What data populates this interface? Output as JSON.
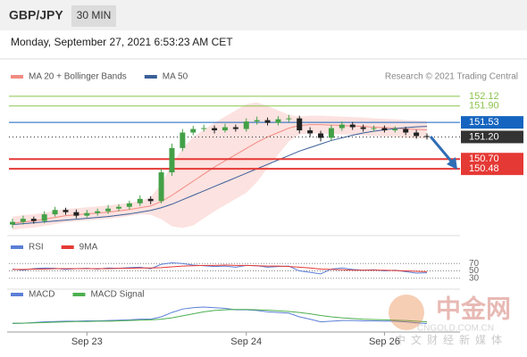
{
  "header": {
    "symbol": "GBP/JPY",
    "timeframe": "30 MIN",
    "datetime": "Monday, September 27, 2021 6:53:23 AM CET"
  },
  "watermark": {
    "brand": "中金网",
    "site": "CNGOLD.COM.CN",
    "slogan": "中文财经新媒体"
  },
  "chart_data": [
    {
      "type": "candlestick",
      "credit": "Research © 2021 Trading Central",
      "categories": [
        null,
        null,
        null,
        null,
        null,
        null,
        null,
        "Sep 23",
        null,
        null,
        null,
        null,
        null,
        null,
        null,
        null,
        null,
        null,
        null,
        null,
        null,
        null,
        "Sep 24",
        null,
        null,
        null,
        null,
        null,
        null,
        null,
        null,
        null,
        null,
        null,
        null,
        "Sep 26",
        null,
        null,
        null,
        null
      ],
      "open": [
        149.22,
        149.28,
        149.35,
        149.3,
        149.45,
        149.55,
        149.5,
        149.42,
        149.48,
        149.52,
        149.58,
        149.62,
        149.7,
        149.8,
        149.75,
        150.4,
        150.95,
        151.3,
        151.38,
        151.4,
        151.35,
        151.42,
        151.38,
        151.55,
        151.58,
        151.52,
        151.6,
        151.62,
        151.35,
        151.28,
        151.18,
        151.4,
        151.48,
        151.42,
        151.38,
        151.4,
        151.35,
        151.38,
        151.3,
        151.22
      ],
      "high": [
        149.35,
        149.42,
        149.4,
        149.52,
        149.62,
        149.6,
        149.56,
        149.55,
        149.58,
        149.66,
        149.68,
        149.76,
        149.88,
        149.86,
        150.48,
        151.05,
        151.38,
        151.45,
        151.48,
        151.46,
        151.5,
        151.48,
        151.62,
        151.66,
        151.64,
        151.67,
        151.7,
        151.68,
        151.42,
        151.34,
        151.47,
        151.55,
        151.54,
        151.48,
        151.46,
        151.46,
        151.44,
        151.43,
        151.36,
        151.28
      ],
      "low": [
        149.14,
        149.22,
        149.24,
        149.25,
        149.4,
        149.44,
        149.36,
        149.38,
        149.42,
        149.46,
        149.52,
        149.56,
        149.64,
        149.68,
        149.7,
        150.32,
        150.88,
        151.24,
        151.32,
        151.28,
        151.3,
        151.32,
        151.32,
        151.48,
        151.46,
        151.46,
        151.54,
        151.28,
        151.2,
        151.1,
        151.12,
        151.34,
        151.36,
        151.32,
        151.32,
        151.3,
        151.3,
        151.24,
        151.16,
        151.14
      ],
      "close": [
        149.28,
        149.35,
        149.3,
        149.45,
        149.55,
        149.5,
        149.42,
        149.48,
        149.52,
        149.58,
        149.62,
        149.7,
        149.8,
        149.75,
        150.4,
        150.95,
        151.3,
        151.38,
        151.4,
        151.35,
        151.42,
        151.38,
        151.55,
        151.58,
        151.52,
        151.6,
        151.62,
        151.35,
        151.28,
        151.18,
        151.4,
        151.48,
        151.42,
        151.38,
        151.4,
        151.35,
        151.38,
        151.3,
        151.22,
        151.2
      ],
      "up_color": "#43a047",
      "down_color": "#222222",
      "series": [
        {
          "name": "MA 20 + Bollinger Bands",
          "color": "#f28b82",
          "values": [
            149.25,
            149.28,
            149.3,
            149.34,
            149.38,
            149.42,
            149.44,
            149.46,
            149.48,
            149.5,
            149.53,
            149.56,
            149.6,
            149.64,
            149.74,
            149.88,
            150.04,
            150.2,
            150.36,
            150.52,
            150.66,
            150.8,
            150.94,
            151.08,
            151.2,
            151.3,
            151.4,
            151.46,
            151.48,
            151.48,
            151.47,
            151.46,
            151.45,
            151.44,
            151.42,
            151.41,
            151.4,
            151.38,
            151.37,
            151.36
          ],
          "upper": [
            149.4,
            149.43,
            149.45,
            149.49,
            149.53,
            149.57,
            149.59,
            149.61,
            149.63,
            149.65,
            149.68,
            149.71,
            149.75,
            149.84,
            150.14,
            150.58,
            150.94,
            151.2,
            151.36,
            151.52,
            151.66,
            151.8,
            151.94,
            151.98,
            151.9,
            151.8,
            151.7,
            151.66,
            151.68,
            151.68,
            151.67,
            151.66,
            151.65,
            151.64,
            151.62,
            151.61,
            151.6,
            151.58,
            151.57,
            151.56
          ],
          "lower": [
            149.1,
            149.13,
            149.15,
            149.19,
            149.23,
            149.27,
            149.29,
            149.31,
            149.33,
            149.35,
            149.38,
            149.41,
            149.45,
            149.44,
            149.34,
            149.18,
            149.14,
            149.2,
            149.36,
            149.52,
            149.66,
            149.8,
            149.94,
            150.18,
            150.5,
            150.8,
            151.1,
            151.26,
            151.28,
            151.28,
            151.27,
            151.26,
            151.25,
            151.24,
            151.22,
            151.21,
            151.2,
            151.18,
            151.17,
            151.16
          ]
        },
        {
          "name": "MA 50",
          "color": "#3a5f9a",
          "values": [
            149.22,
            149.24,
            149.26,
            149.28,
            149.3,
            149.32,
            149.34,
            149.36,
            149.38,
            149.4,
            149.43,
            149.46,
            149.5,
            149.54,
            149.6,
            149.68,
            149.78,
            149.88,
            149.98,
            150.08,
            150.18,
            150.28,
            150.38,
            150.48,
            150.58,
            150.68,
            150.78,
            150.88,
            150.96,
            151.04,
            151.12,
            151.18,
            151.24,
            151.29,
            151.33,
            151.36,
            151.39,
            151.41,
            151.43,
            151.44
          ]
        }
      ],
      "levels": [
        {
          "value": 152.12,
          "label": "152.12",
          "color": "#8bc34a"
        },
        {
          "value": 151.9,
          "label": "151.90",
          "color": "#8bc34a"
        },
        {
          "value": 151.53,
          "label": "151.53",
          "color": "#1565c0"
        },
        {
          "value": 151.2,
          "label": "151.20",
          "color": "#333333"
        },
        {
          "value": 150.7,
          "label": "150.70",
          "color": "#e53935"
        },
        {
          "value": 150.48,
          "label": "150.48",
          "color": "#e53935"
        }
      ],
      "ylim": [
        149.05,
        152.4
      ]
    },
    {
      "type": "line",
      "series": [
        {
          "name": "RSI",
          "color": "#5b7fd6",
          "values": [
            55,
            52,
            56,
            58,
            57,
            54,
            56,
            57,
            55,
            58,
            57,
            59,
            60,
            56,
            68,
            72,
            70,
            66,
            64,
            62,
            63,
            60,
            65,
            64,
            60,
            62,
            63,
            50,
            46,
            42,
            55,
            58,
            54,
            52,
            53,
            50,
            52,
            48,
            44,
            45
          ]
        },
        {
          "name": "9MA",
          "color": "#e53935",
          "values": [
            54,
            54,
            55,
            55,
            56,
            56,
            56,
            56,
            56,
            56,
            57,
            57,
            58,
            58,
            59,
            61,
            63,
            64,
            65,
            65,
            66,
            65,
            65,
            64,
            63,
            63,
            62,
            60,
            58,
            55,
            54,
            53,
            52,
            52,
            52,
            52,
            51,
            50,
            49,
            48
          ]
        }
      ],
      "ylim": [
        10,
        95
      ],
      "yticks": [
        70,
        50,
        30
      ]
    },
    {
      "type": "line",
      "series": [
        {
          "name": "MACD",
          "color": "#5b7fd6",
          "values": [
            -0.05,
            -0.04,
            -0.02,
            0,
            0.01,
            0.02,
            0.02,
            0.03,
            0.03,
            0.04,
            0.05,
            0.06,
            0.08,
            0.08,
            0.15,
            0.28,
            0.38,
            0.42,
            0.44,
            0.42,
            0.4,
            0.36,
            0.36,
            0.34,
            0.3,
            0.28,
            0.26,
            0.15,
            0.08,
            0.0,
            0.02,
            0.04,
            0.04,
            0.03,
            0.03,
            0.02,
            0.02,
            0.0,
            -0.03,
            -0.05
          ]
        },
        {
          "name": "MACD Signal",
          "color": "#4caf50",
          "values": [
            -0.04,
            -0.04,
            -0.03,
            -0.02,
            -0.01,
            0,
            0.01,
            0.01,
            0.02,
            0.02,
            0.03,
            0.04,
            0.05,
            0.06,
            0.08,
            0.12,
            0.18,
            0.24,
            0.3,
            0.34,
            0.36,
            0.37,
            0.37,
            0.36,
            0.35,
            0.33,
            0.31,
            0.28,
            0.24,
            0.19,
            0.15,
            0.12,
            0.1,
            0.08,
            0.07,
            0.06,
            0.05,
            0.04,
            0.02,
            0.0
          ]
        }
      ],
      "ylim": [
        -0.3,
        0.6
      ]
    }
  ]
}
